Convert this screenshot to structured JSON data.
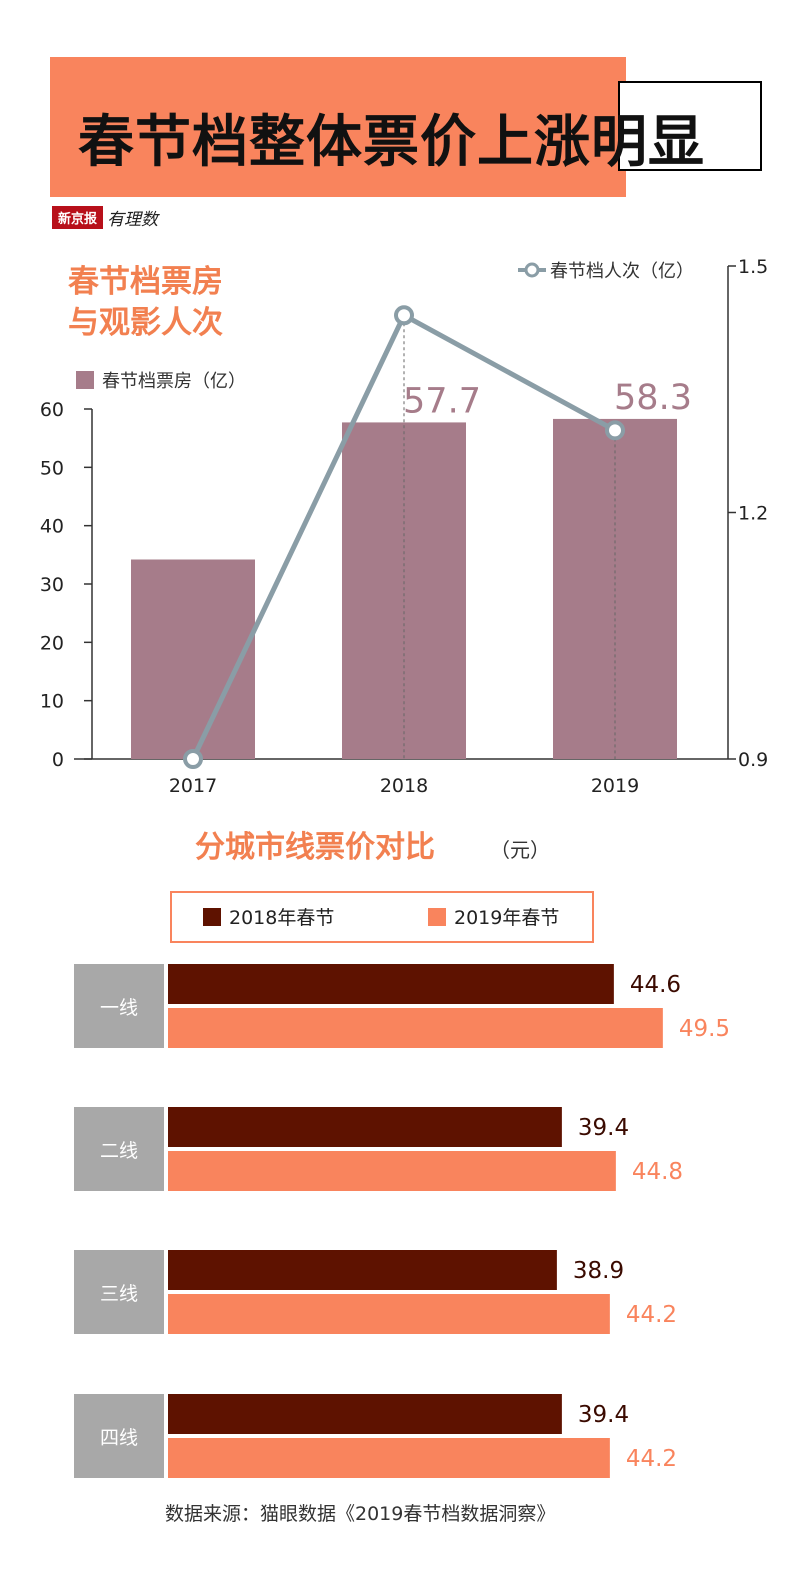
{
  "title": "春节档整体票价上涨明显",
  "logo": {
    "name": "新京报",
    "sub": "有理数"
  },
  "chart1": {
    "heading_lines": [
      "春节档票房",
      "与观影人次"
    ],
    "legend_bar": "春节档票房（亿）",
    "legend_line": "春节档人次（亿）"
  },
  "chart2": {
    "heading": "分城市线票价对比",
    "unit": "（元）",
    "legend": [
      "2018年春节",
      "2019年春节"
    ]
  },
  "source": "数据来源：猫眼数据《2019春节档数据洞察》",
  "colors": {
    "title_bg": "#f9845d",
    "bar_box_office": "#a67c8a",
    "line_attendance": "#8a9da6",
    "heading_orange": "#f28050",
    "series_2018": "#5e1200",
    "series_2019": "#f9845d",
    "tier_label_bg": "#a8a8a8"
  },
  "chart_data": [
    {
      "type": "bar",
      "categories": [
        "2017",
        "2018",
        "2019"
      ],
      "series": [
        {
          "name": "春节档票房（亿）",
          "values": [
            34.2,
            57.7,
            58.3
          ],
          "axis": "left"
        },
        {
          "name": "春节档人次（亿）",
          "type": "line",
          "values": [
            0.9,
            1.44,
            1.3
          ],
          "axis": "right"
        }
      ],
      "data_labels": {
        "2018": "57.7",
        "2019": "58.3"
      },
      "y_left": {
        "lim": [
          0,
          60
        ],
        "ticks": [
          "0",
          "10",
          "20",
          "30",
          "40",
          "50",
          "60"
        ]
      },
      "y_right": {
        "lim": [
          0.9,
          1.5
        ],
        "ticks": [
          "0.9",
          "1.2",
          "1.5"
        ]
      },
      "grid": false,
      "legend": "top"
    },
    {
      "type": "bar",
      "orientation": "horizontal",
      "categories": [
        "一线",
        "二线",
        "三线",
        "四线"
      ],
      "series": [
        {
          "name": "2018年春节",
          "values": [
            44.6,
            39.4,
            38.9,
            39.4
          ]
        },
        {
          "name": "2019年春节",
          "values": [
            49.5,
            44.8,
            44.2,
            44.2
          ]
        }
      ],
      "labels": [
        [
          "44.6",
          "49.5"
        ],
        [
          "39.4",
          "44.8"
        ],
        [
          "38.9",
          "44.2"
        ],
        [
          "39.4",
          "44.2"
        ]
      ],
      "grid": false,
      "legend": "top"
    }
  ]
}
